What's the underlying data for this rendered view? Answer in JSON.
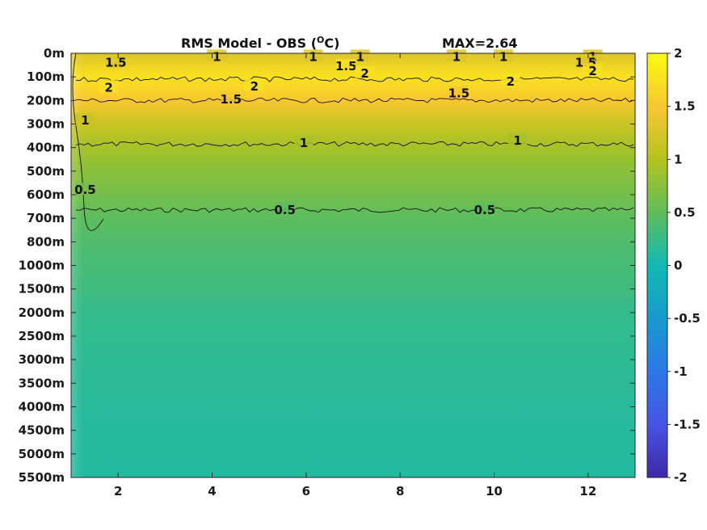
{
  "chart_data": {
    "type": "heatmap",
    "title": "RMS Model - OBS (",
    "title_unit": "C)",
    "title_degree": "O",
    "max_label": "MAX=2.64",
    "x_range": [
      1,
      13
    ],
    "x_ticks": [
      2,
      4,
      6,
      8,
      10,
      12
    ],
    "y_ticks": [
      "0m",
      "100m",
      "200m",
      "300m",
      "400m",
      "500m",
      "600m",
      "700m",
      "800m",
      "1000m",
      "1500m",
      "2000m",
      "2500m",
      "3000m",
      "3500m",
      "4000m",
      "4500m",
      "5000m",
      "5500m"
    ],
    "colorbar_range": [
      -2,
      2
    ],
    "colorbar_ticks": [
      "2",
      "1.5",
      "1",
      "0.5",
      "0",
      "-0.5",
      "-1",
      "-1.5",
      "-2"
    ],
    "depth_profile": [
      {
        "depth": "0m",
        "value": 1.3
      },
      {
        "depth": "100m",
        "value": 1.75
      },
      {
        "depth": "200m",
        "value": 1.5
      },
      {
        "depth": "300m",
        "value": 1.15
      },
      {
        "depth": "400m",
        "value": 0.92
      },
      {
        "depth": "500m",
        "value": 0.75
      },
      {
        "depth": "600m",
        "value": 0.62
      },
      {
        "depth": "700m",
        "value": 0.48
      },
      {
        "depth": "800m",
        "value": 0.4
      },
      {
        "depth": "1000m",
        "value": 0.34
      },
      {
        "depth": "1500m",
        "value": 0.3
      },
      {
        "depth": "2000m",
        "value": 0.22
      },
      {
        "depth": "2500m",
        "value": 0.2
      },
      {
        "depth": "3000m",
        "value": 0.18
      },
      {
        "depth": "3500m",
        "value": 0.16
      },
      {
        "depth": "4000m",
        "value": 0.14
      },
      {
        "depth": "4500m",
        "value": 0.13
      },
      {
        "depth": "5000m",
        "value": 0.12
      },
      {
        "depth": "5500m",
        "value": 0.11
      }
    ],
    "contours": [
      {
        "level": "0.5",
        "depth_index": 6.65
      },
      {
        "level": "1",
        "depth_index": 3.85
      },
      {
        "level": "1.5",
        "depth_index": 2.0
      },
      {
        "level": "2",
        "depth_index": 1.1
      }
    ],
    "contour_labels": [
      {
        "text": "1.5",
        "x": 1.95,
        "depth_index": 0.4
      },
      {
        "text": "1",
        "x": 4.1,
        "depth_index": 0.15
      },
      {
        "text": "1",
        "x": 6.15,
        "depth_index": 0.15
      },
      {
        "text": "1",
        "x": 7.15,
        "depth_index": 0.15
      },
      {
        "text": "1",
        "x": 9.2,
        "depth_index": 0.15
      },
      {
        "text": "1",
        "x": 10.2,
        "depth_index": 0.15
      },
      {
        "text": "1",
        "x": 12.1,
        "depth_index": 0.15
      },
      {
        "text": "1.5",
        "x": 6.85,
        "depth_index": 0.55
      },
      {
        "text": "1.5",
        "x": 11.95,
        "depth_index": 0.4
      },
      {
        "text": "2",
        "x": 1.8,
        "depth_index": 1.45
      },
      {
        "text": "2",
        "x": 4.9,
        "depth_index": 1.4
      },
      {
        "text": "2",
        "x": 7.25,
        "depth_index": 0.85
      },
      {
        "text": "2",
        "x": 10.35,
        "depth_index": 1.2
      },
      {
        "text": "2",
        "x": 12.1,
        "depth_index": 0.75
      },
      {
        "text": "1.5",
        "x": 4.4,
        "depth_index": 1.95
      },
      {
        "text": "1.5",
        "x": 9.25,
        "depth_index": 1.7
      },
      {
        "text": "1",
        "x": 5.95,
        "depth_index": 3.8
      },
      {
        "text": "1",
        "x": 10.5,
        "depth_index": 3.7
      },
      {
        "text": "0.5",
        "x": 5.55,
        "depth_index": 6.65
      },
      {
        "text": "0.5",
        "x": 9.8,
        "depth_index": 6.65
      },
      {
        "text": "1",
        "x": 1.3,
        "depth_index": 2.85
      },
      {
        "text": "0.5",
        "x": 1.3,
        "depth_index": 5.8
      }
    ]
  }
}
